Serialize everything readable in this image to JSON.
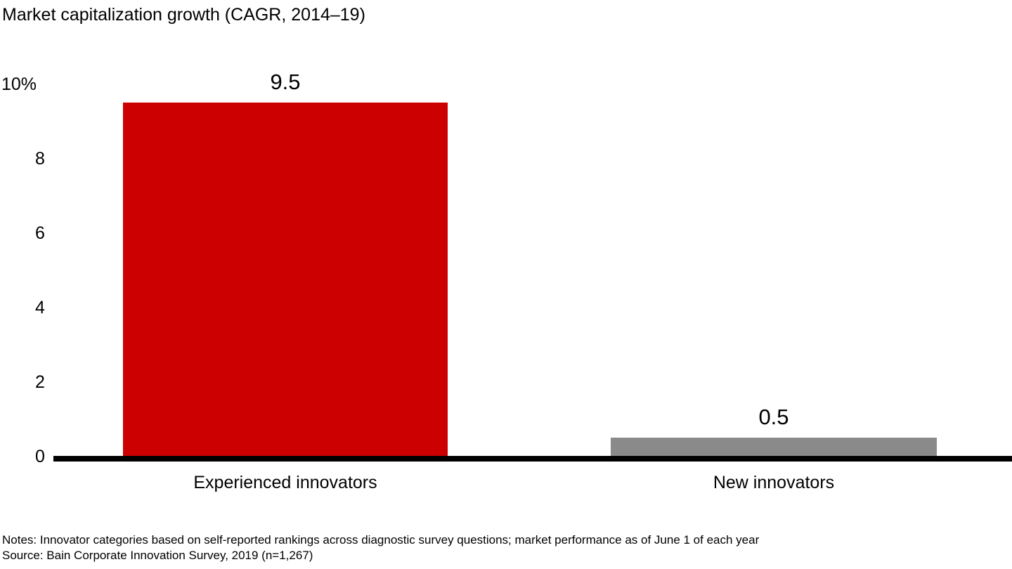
{
  "header": {
    "title": "Market capitalization growth (CAGR, 2014–19)"
  },
  "footnotes": {
    "notes": "Notes: Innovator categories based on self-reported rankings across diagnostic survey questions; market performance as of June 1 of each year",
    "source": "Source: Bain Corporate Innovation Survey, 2019 (n=1,267)"
  },
  "colors": {
    "experienced_bar": "#cc0000",
    "new_bar": "#8a8a8a",
    "axis": "#000000",
    "text": "#000000"
  },
  "chart_data": {
    "type": "bar",
    "title": "Market capitalization growth (CAGR, 2014–19)",
    "categories": [
      "Experienced innovators",
      "New innovators"
    ],
    "values": [
      9.5,
      0.5
    ],
    "data_labels": [
      "9.5",
      "0.5"
    ],
    "bar_colors": [
      "#cc0000",
      "#8a8a8a"
    ],
    "xlabel": "",
    "ylabel": "Market capitalization growth (CAGR, 2014–19)",
    "ylim": [
      0,
      10
    ],
    "yticks": [
      {
        "value": 0,
        "label": "0"
      },
      {
        "value": 2,
        "label": "2"
      },
      {
        "value": 4,
        "label": "4"
      },
      {
        "value": 6,
        "label": "6"
      },
      {
        "value": 8,
        "label": "8"
      },
      {
        "value": 10,
        "label": "10%"
      }
    ],
    "grid": false,
    "legend_position": "none"
  }
}
